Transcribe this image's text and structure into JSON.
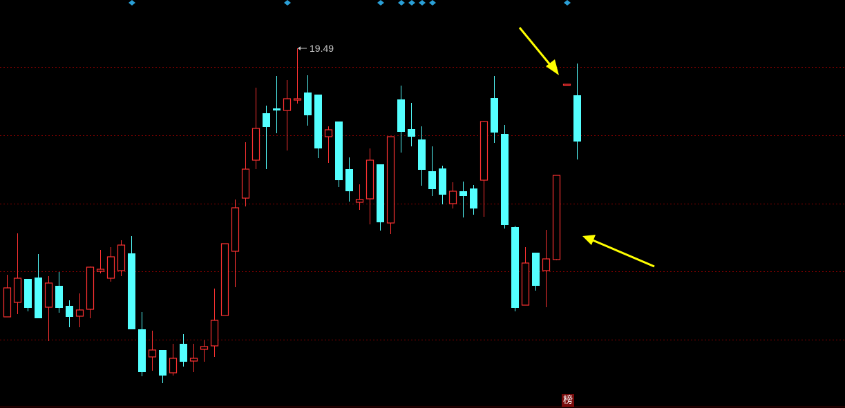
{
  "chart_data": {
    "type": "candlestick",
    "title": "",
    "xlabel": "",
    "ylabel": "",
    "grid": true,
    "colors": {
      "up": "#ff3232",
      "down": "#54ffff",
      "grid": "#8a0000",
      "marker": "#2a9fd6",
      "arrow": "#ffff00",
      "background": "#000000"
    },
    "max_label": "19.49",
    "candles": [
      [
        15.6,
        16.21,
        15.6,
        16.02
      ],
      [
        15.81,
        16.81,
        15.64,
        16.16
      ],
      [
        16.15,
        16.15,
        15.68,
        15.73
      ],
      [
        16.17,
        16.51,
        15.58,
        15.58
      ],
      [
        15.74,
        16.19,
        15.25,
        16.09
      ],
      [
        16.05,
        16.25,
        15.66,
        15.73
      ],
      [
        15.76,
        15.84,
        15.45,
        15.6
      ],
      [
        15.61,
        15.94,
        15.45,
        15.7
      ],
      [
        15.71,
        16.33,
        15.58,
        16.32
      ],
      [
        16.26,
        16.57,
        16.23,
        16.29
      ],
      [
        16.16,
        16.61,
        16.11,
        16.47
      ],
      [
        16.27,
        16.71,
        16.19,
        16.64
      ],
      [
        16.52,
        16.77,
        15.42,
        15.42
      ],
      [
        15.42,
        15.67,
        14.74,
        14.8
      ],
      [
        15.02,
        15.4,
        14.82,
        15.12
      ],
      [
        15.12,
        15.12,
        14.64,
        14.75
      ],
      [
        14.79,
        15.21,
        14.75,
        15.0
      ],
      [
        15.21,
        15.35,
        14.88,
        14.95
      ],
      [
        14.96,
        15.21,
        14.8,
        15.0
      ],
      [
        15.13,
        15.26,
        14.95,
        15.17
      ],
      [
        15.18,
        16.01,
        15.02,
        15.55
      ],
      [
        15.62,
        16.66,
        15.62,
        16.66
      ],
      [
        16.55,
        17.3,
        16.03,
        17.18
      ],
      [
        17.32,
        18.13,
        17.2,
        17.74
      ],
      [
        17.87,
        18.92,
        17.74,
        18.33
      ],
      [
        18.55,
        18.66,
        17.74,
        18.35
      ],
      [
        18.62,
        19.09,
        18.26,
        18.59
      ],
      [
        18.59,
        19.03,
        18.01,
        18.76
      ],
      [
        18.74,
        19.49,
        18.69,
        18.76
      ],
      [
        18.85,
        19.1,
        18.37,
        18.52
      ],
      [
        18.82,
        18.82,
        17.9,
        18.04
      ],
      [
        18.21,
        18.36,
        17.83,
        18.31
      ],
      [
        18.43,
        18.43,
        17.48,
        17.58
      ],
      [
        17.74,
        17.91,
        17.27,
        17.42
      ],
      [
        17.26,
        17.52,
        17.15,
        17.3
      ],
      [
        17.31,
        18.04,
        16.94,
        17.87
      ],
      [
        17.81,
        17.81,
        16.85,
        16.97
      ],
      [
        16.96,
        18.21,
        16.8,
        18.21
      ],
      [
        18.75,
        18.95,
        17.98,
        18.28
      ],
      [
        18.32,
        18.7,
        18.07,
        18.21
      ],
      [
        18.17,
        18.36,
        17.5,
        17.73
      ],
      [
        17.71,
        18.07,
        17.35,
        17.45
      ],
      [
        17.75,
        17.79,
        17.23,
        17.37
      ],
      [
        17.24,
        17.55,
        17.17,
        17.42
      ],
      [
        17.42,
        17.56,
        17.04,
        17.35
      ],
      [
        17.46,
        17.51,
        17.08,
        17.17
      ],
      [
        17.58,
        18.44,
        17.05,
        18.43
      ],
      [
        18.77,
        19.09,
        18.12,
        18.27
      ],
      [
        18.25,
        18.38,
        16.88,
        16.93
      ],
      [
        16.9,
        16.92,
        15.68,
        15.73
      ],
      [
        15.77,
        16.61,
        15.77,
        16.38
      ],
      [
        16.53,
        16.53,
        15.98,
        16.05
      ],
      [
        16.27,
        16.86,
        15.74,
        16.44
      ],
      [
        16.43,
        17.65,
        16.42,
        17.65
      ],
      [
        18.97,
        18.97,
        18.97,
        18.97
      ],
      [
        18.81,
        19.27,
        17.88,
        18.14
      ]
    ],
    "candle_fields": [
      "open",
      "high",
      "low",
      "close"
    ],
    "signal_markers_at": [
      12,
      27,
      36,
      38,
      39,
      40,
      41,
      54
    ],
    "gridlines": [
      19.22,
      18.23,
      17.24,
      16.26,
      15.27
    ]
  },
  "badge": {
    "text": "榜"
  }
}
